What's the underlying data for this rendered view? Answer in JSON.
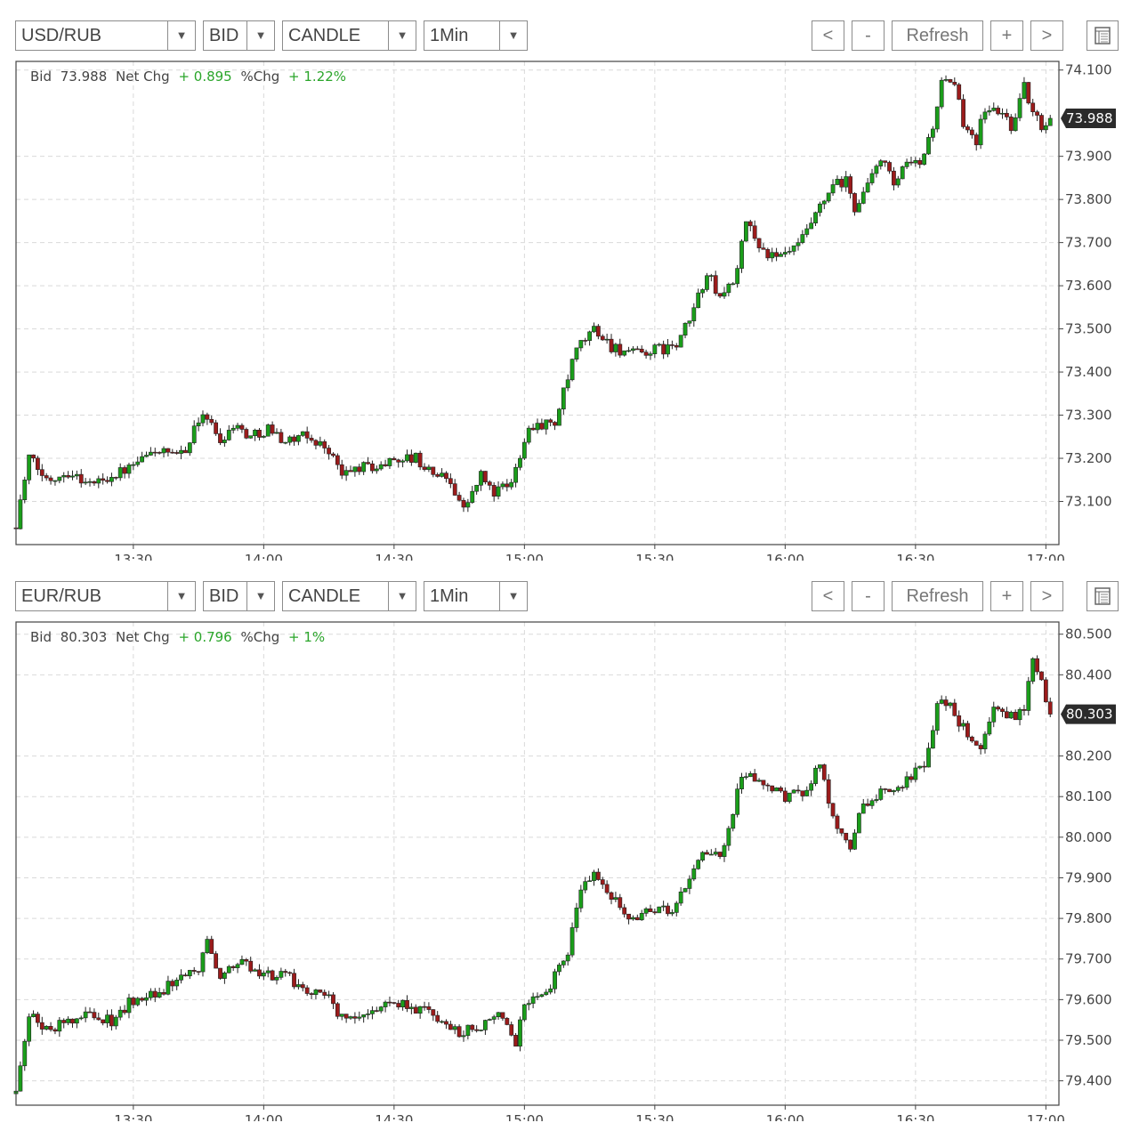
{
  "colors": {
    "up": "#1a9e1a",
    "down": "#9b1b1b",
    "grid": "#d9d9d9",
    "axis": "#444444",
    "label_green": "#2aa52a",
    "price_tag_bg": "#2b2b2b"
  },
  "charts": [
    {
      "toolbar": {
        "symbol": "USD/RUB",
        "price_type": "BID",
        "chart_style": "CANDLE",
        "interval": "1Min",
        "dropdown_arrow": "▼",
        "prev_label": "<",
        "zoom_out_label": "-",
        "refresh_label": "Refresh",
        "zoom_in_label": "+",
        "next_label": ">",
        "settings_icon": "table-icon"
      },
      "info": {
        "bid_label": "Bid",
        "bid_value": "73.988",
        "net_chg_label": "Net Chg",
        "net_chg_value": "+ 0.895",
        "pct_chg_label": "%Chg",
        "pct_chg_value": "+ 1.22%"
      },
      "price_tag": "73.988"
    },
    {
      "toolbar": {
        "symbol": "EUR/RUB",
        "price_type": "BID",
        "chart_style": "CANDLE",
        "interval": "1Min",
        "dropdown_arrow": "▼",
        "prev_label": "<",
        "zoom_out_label": "-",
        "refresh_label": "Refresh",
        "zoom_in_label": "+",
        "next_label": ">",
        "settings_icon": "table-icon"
      },
      "info": {
        "bid_label": "Bid",
        "bid_value": "80.303",
        "net_chg_label": "Net Chg",
        "net_chg_value": "+ 0.796",
        "pct_chg_label": "%Chg",
        "pct_chg_value": "+ 1%"
      },
      "price_tag": "80.303"
    }
  ],
  "chart_data": [
    {
      "type": "candlestick",
      "series_name": "USD/RUB BID",
      "interval": "1Min",
      "x_range": [
        "13:03",
        "17:03"
      ],
      "ylim": [
        73.0,
        74.12
      ],
      "x_ticks": [
        "13:30",
        "14:00",
        "14:30",
        "15:00",
        "15:30",
        "16:00",
        "16:30",
        "17:00"
      ],
      "y_ticks": [
        "73.100",
        "73.200",
        "73.300",
        "73.400",
        "73.500",
        "73.600",
        "73.700",
        "73.800",
        "73.900",
        "74.100"
      ],
      "grid": true,
      "last_price": 73.988,
      "anchors": [
        [
          "13:03",
          73.05
        ],
        [
          "13:06",
          73.2
        ],
        [
          "13:10",
          73.15
        ],
        [
          "13:15",
          73.17
        ],
        [
          "13:20",
          73.14
        ],
        [
          "13:30",
          73.18
        ],
        [
          "13:35",
          73.22
        ],
        [
          "13:40",
          73.2
        ],
        [
          "13:43",
          73.24
        ],
        [
          "13:46",
          73.31
        ],
        [
          "13:50",
          73.24
        ],
        [
          "13:53",
          73.28
        ],
        [
          "13:57",
          73.25
        ],
        [
          "14:01",
          73.27
        ],
        [
          "14:05",
          73.24
        ],
        [
          "14:10",
          73.25
        ],
        [
          "14:15",
          73.22
        ],
        [
          "14:18",
          73.16
        ],
        [
          "14:22",
          73.18
        ],
        [
          "14:27",
          73.18
        ],
        [
          "14:30",
          73.2
        ],
        [
          "14:35",
          73.2
        ],
        [
          "14:38",
          73.17
        ],
        [
          "14:43",
          73.15
        ],
        [
          "14:46",
          73.08
        ],
        [
          "14:50",
          73.16
        ],
        [
          "14:53",
          73.12
        ],
        [
          "14:57",
          73.14
        ],
        [
          "15:00",
          73.25
        ],
        [
          "15:02",
          73.28
        ],
        [
          "15:07",
          73.28
        ],
        [
          "15:09",
          73.35
        ],
        [
          "15:12",
          73.45
        ],
        [
          "15:16",
          73.5
        ],
        [
          "15:20",
          73.46
        ],
        [
          "15:25",
          73.44
        ],
        [
          "15:30",
          73.45
        ],
        [
          "15:35",
          73.46
        ],
        [
          "15:38",
          73.52
        ],
        [
          "15:42",
          73.63
        ],
        [
          "15:45",
          73.57
        ],
        [
          "15:49",
          73.63
        ],
        [
          "15:51",
          73.75
        ],
        [
          "15:55",
          73.68
        ],
        [
          "15:58",
          73.66
        ],
        [
          "16:03",
          73.69
        ],
        [
          "16:07",
          73.76
        ],
        [
          "16:11",
          73.83
        ],
        [
          "16:14",
          73.84
        ],
        [
          "16:16",
          73.78
        ],
        [
          "16:20",
          73.85
        ],
        [
          "16:22",
          73.9
        ],
        [
          "16:25",
          73.83
        ],
        [
          "16:28",
          73.88
        ],
        [
          "16:31",
          73.88
        ],
        [
          "16:34",
          73.97
        ],
        [
          "16:36",
          74.07
        ],
        [
          "16:39",
          74.06
        ],
        [
          "16:41",
          73.98
        ],
        [
          "16:44",
          73.94
        ],
        [
          "16:46",
          74.01
        ],
        [
          "16:50",
          74.0
        ],
        [
          "16:52",
          73.97
        ],
        [
          "16:55",
          74.06
        ],
        [
          "16:57",
          74.0
        ],
        [
          "16:59",
          73.97
        ],
        [
          "17:01",
          73.99
        ]
      ]
    },
    {
      "type": "candlestick",
      "series_name": "EUR/RUB BID",
      "interval": "1Min",
      "x_range": [
        "13:03",
        "17:03"
      ],
      "ylim": [
        79.34,
        80.53
      ],
      "x_ticks": [
        "13:30",
        "14:00",
        "14:30",
        "15:00",
        "15:30",
        "16:00",
        "16:30",
        "17:00"
      ],
      "y_ticks": [
        "79.400",
        "79.500",
        "79.600",
        "79.700",
        "79.800",
        "79.900",
        "80.000",
        "80.100",
        "80.200",
        "80.400",
        "80.500"
      ],
      "grid": true,
      "last_price": 80.303,
      "anchors": [
        [
          "13:03",
          79.38
        ],
        [
          "13:06",
          79.56
        ],
        [
          "13:10",
          79.52
        ],
        [
          "13:15",
          79.55
        ],
        [
          "13:20",
          79.56
        ],
        [
          "13:25",
          79.55
        ],
        [
          "13:30",
          79.6
        ],
        [
          "13:35",
          79.62
        ],
        [
          "13:40",
          79.64
        ],
        [
          "13:45",
          79.67
        ],
        [
          "13:47",
          79.74
        ],
        [
          "13:50",
          79.66
        ],
        [
          "13:55",
          79.69
        ],
        [
          "14:00",
          79.66
        ],
        [
          "14:05",
          79.66
        ],
        [
          "14:10",
          79.62
        ],
        [
          "14:15",
          79.6
        ],
        [
          "14:18",
          79.55
        ],
        [
          "14:25",
          79.58
        ],
        [
          "14:30",
          79.6
        ],
        [
          "14:35",
          79.58
        ],
        [
          "14:40",
          79.55
        ],
        [
          "14:45",
          79.52
        ],
        [
          "14:50",
          79.54
        ],
        [
          "14:55",
          79.56
        ],
        [
          "14:58",
          79.5
        ],
        [
          "15:00",
          79.6
        ],
        [
          "15:05",
          79.62
        ],
        [
          "15:10",
          79.72
        ],
        [
          "15:13",
          79.88
        ],
        [
          "15:16",
          79.92
        ],
        [
          "15:20",
          79.85
        ],
        [
          "15:25",
          79.8
        ],
        [
          "15:30",
          79.82
        ],
        [
          "15:35",
          79.83
        ],
        [
          "15:38",
          79.9
        ],
        [
          "15:42",
          79.97
        ],
        [
          "15:45",
          79.94
        ],
        [
          "15:48",
          80.05
        ],
        [
          "15:50",
          80.16
        ],
        [
          "15:55",
          80.12
        ],
        [
          "16:00",
          80.1
        ],
        [
          "16:05",
          80.12
        ],
        [
          "16:08",
          80.18
        ],
        [
          "16:11",
          80.05
        ],
        [
          "16:15",
          79.98
        ],
        [
          "16:18",
          80.08
        ],
        [
          "16:22",
          80.11
        ],
        [
          "16:25",
          80.1
        ],
        [
          "16:28",
          80.15
        ],
        [
          "16:31",
          80.16
        ],
        [
          "16:33",
          80.21
        ],
        [
          "16:35",
          80.34
        ],
        [
          "16:38",
          80.32
        ],
        [
          "16:42",
          80.25
        ],
        [
          "16:45",
          80.22
        ],
        [
          "16:48",
          80.31
        ],
        [
          "16:52",
          80.3
        ],
        [
          "16:55",
          80.3
        ],
        [
          "16:57",
          80.45
        ],
        [
          "16:59",
          80.38
        ],
        [
          "17:01",
          80.3
        ]
      ]
    }
  ]
}
